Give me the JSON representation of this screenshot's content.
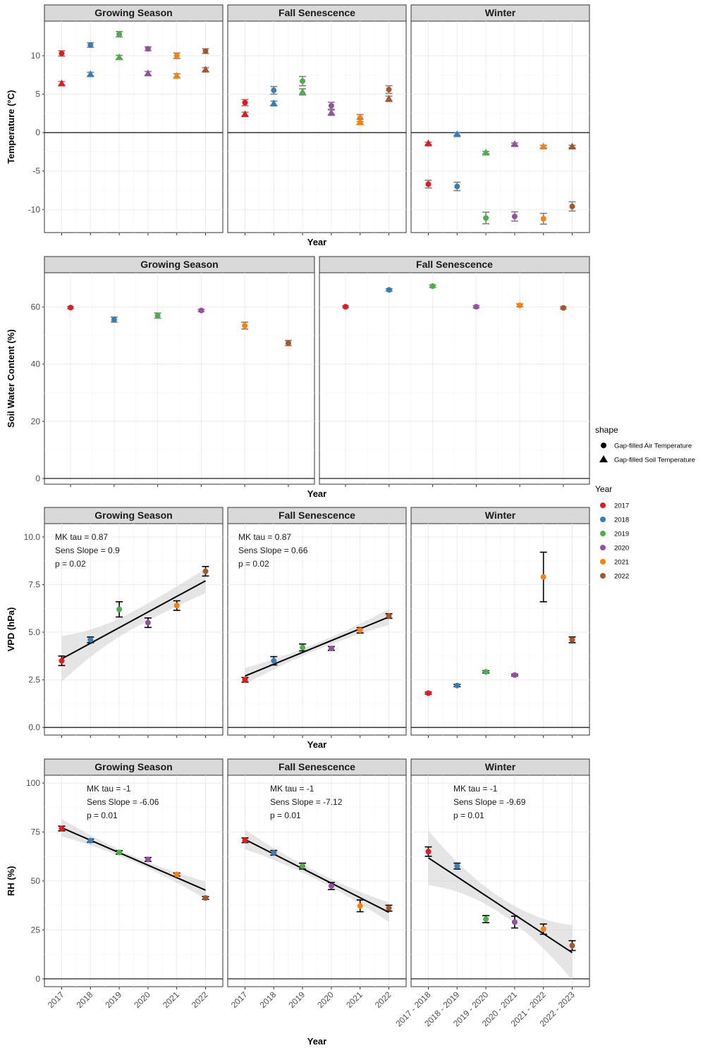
{
  "chart_data": [
    {
      "type": "scatter",
      "ylabel": "Temperature (°C)",
      "xlabel": "Year",
      "ylim": [
        -13,
        14.5
      ],
      "yticks": [
        10,
        5,
        0,
        -5,
        -10
      ],
      "panels": [
        {
          "title": "Growing Season",
          "x": [
            "2017",
            "2018",
            "2019",
            "2020",
            "2021",
            "2022"
          ],
          "series": [
            {
              "name": "Gap-filled Air Temperature",
              "shape": "circle",
              "values": [
                10.3,
                11.4,
                12.8,
                10.9,
                10.0,
                10.6
              ],
              "err": [
                0.35,
                0.3,
                0.35,
                0.25,
                0.35,
                0.3
              ]
            },
            {
              "name": "Gap-filled Soil Temperature",
              "shape": "triangle",
              "values": [
                6.4,
                7.6,
                9.8,
                7.7,
                7.4,
                8.2
              ],
              "err": [
                0.25,
                0.25,
                0.25,
                0.25,
                0.25,
                0.25
              ]
            }
          ]
        },
        {
          "title": "Fall Senescence",
          "x": [
            "2017",
            "2018",
            "2019",
            "2020",
            "2021",
            "2022"
          ],
          "series": [
            {
              "name": "Gap-filled Air Temperature",
              "shape": "circle",
              "values": [
                3.9,
                5.5,
                6.7,
                3.5,
                1.9,
                5.6
              ],
              "err": [
                0.4,
                0.5,
                0.6,
                0.45,
                0.45,
                0.5
              ]
            },
            {
              "name": "Gap-filled Soil Temperature",
              "shape": "triangle",
              "values": [
                2.4,
                3.8,
                5.3,
                2.6,
                1.4,
                4.4
              ],
              "err": [
                0.25,
                0.3,
                0.4,
                0.35,
                0.35,
                0.35
              ]
            }
          ]
        },
        {
          "title": "Winter",
          "x": [
            "2017 - 2018",
            "2018 - 2019",
            "2019 - 2020",
            "2020 - 2021",
            "2021 - 2022",
            "2022 - 2023"
          ],
          "series": [
            {
              "name": "Gap-filled Air Temperature",
              "shape": "circle",
              "values": [
                -6.7,
                -7.0,
                -11.1,
                -10.9,
                -11.2,
                -9.6
              ],
              "err": [
                0.5,
                0.55,
                0.75,
                0.6,
                0.7,
                0.6
              ]
            },
            {
              "name": "Gap-filled Soil Temperature",
              "shape": "triangle",
              "values": [
                -1.4,
                -0.2,
                -2.6,
                -1.5,
                -1.8,
                -1.8
              ],
              "err": [
                0.15,
                0.15,
                0.15,
                0.15,
                0.15,
                0.15
              ]
            }
          ]
        }
      ]
    },
    {
      "type": "scatter",
      "ylabel": "Soil Water Content (%)",
      "xlabel": "Year",
      "ylim": [
        -2,
        72
      ],
      "yticks": [
        60,
        40,
        20,
        0
      ],
      "panels": [
        {
          "title": "Growing Season",
          "x": [
            "2017",
            "2018",
            "2019",
            "2020",
            "2021",
            "2022"
          ],
          "series": [
            {
              "name": "Soil Water Content",
              "shape": "circle",
              "values": [
                59.8,
                55.6,
                57.0,
                58.8,
                53.5,
                47.4
              ],
              "err": [
                0.35,
                0.9,
                0.9,
                0.4,
                1.2,
                0.9
              ]
            }
          ]
        },
        {
          "title": "Fall Senescence",
          "x": [
            "2017",
            "2018",
            "2019",
            "2020",
            "2021",
            "2022"
          ],
          "series": [
            {
              "name": "Soil Water Content",
              "shape": "circle",
              "values": [
                60.1,
                66.0,
                67.3,
                60.1,
                60.6,
                59.7
              ],
              "err": [
                0.35,
                0.4,
                0.45,
                0.4,
                0.5,
                0.4
              ]
            }
          ]
        }
      ]
    },
    {
      "type": "scatter",
      "ylabel": "VPD (hPa)",
      "xlabel": "Year",
      "ylim": [
        -0.4,
        10.7
      ],
      "yticks": [
        0.0,
        2.5,
        5.0,
        7.5,
        10.0
      ],
      "panels": [
        {
          "title": "Growing Season",
          "x": [
            "2017",
            "2018",
            "2019",
            "2020",
            "2021",
            "2022"
          ],
          "series": [
            {
              "name": "VPD",
              "shape": "circle",
              "values": [
                3.5,
                4.6,
                6.2,
                5.5,
                6.4,
                8.2
              ],
              "err": [
                0.25,
                0.15,
                0.4,
                0.25,
                0.25,
                0.25
              ]
            }
          ],
          "trend": {
            "y0": 3.6,
            "y1": 7.7,
            "band0": 1.2,
            "band_mid": 0.45,
            "band1": 0.65
          },
          "annotation": [
            "MK tau = 0.87",
            "Sens Slope = 0.9",
            "p = 0.02"
          ]
        },
        {
          "title": "Fall Senescence",
          "x": [
            "2017",
            "2018",
            "2019",
            "2020",
            "2021",
            "2022"
          ],
          "series": [
            {
              "name": "VPD",
              "shape": "circle",
              "values": [
                2.5,
                3.5,
                4.2,
                4.15,
                5.1,
                5.85
              ],
              "err": [
                0.12,
                0.22,
                0.18,
                0.1,
                0.14,
                0.12
              ]
            }
          ],
          "trend": {
            "y0": 2.7,
            "y1": 5.8,
            "band0": 0.42,
            "band_mid": 0.18,
            "band1": 0.42
          },
          "annotation": [
            "MK tau = 0.87",
            "Sens Slope = 0.66",
            "p = 0.02"
          ]
        },
        {
          "title": "Winter",
          "x": [
            "2017 - 2018",
            "2018 - 2019",
            "2019 - 2020",
            "2020 - 2021",
            "2021 - 2022",
            "2022 - 2023"
          ],
          "series": [
            {
              "name": "VPD",
              "shape": "circle",
              "values": [
                1.8,
                2.2,
                2.92,
                2.75,
                7.9,
                4.6
              ],
              "err": [
                0.05,
                0.06,
                0.06,
                0.05,
                1.3,
                0.15
              ]
            }
          ]
        }
      ]
    },
    {
      "type": "scatter",
      "ylabel": "RH (%)",
      "xlabel": "Year",
      "ylim": [
        -4,
        104
      ],
      "yticks": [
        100,
        75,
        50,
        25,
        0
      ],
      "panels": [
        {
          "title": "Growing Season",
          "x": [
            "2017",
            "2018",
            "2019",
            "2020",
            "2021",
            "2022"
          ],
          "series": [
            {
              "name": "RH",
              "shape": "circle",
              "values": [
                76.8,
                70.6,
                64.6,
                61.0,
                53.3,
                41.3
              ],
              "err": [
                1.2,
                0.8,
                0.9,
                1.0,
                0.8,
                0.7
              ]
            }
          ],
          "trend": {
            "y0": 77.2,
            "y1": 45.3,
            "band0": 4.5,
            "band_mid": 1.5,
            "band1": 4.5
          },
          "annotation": [
            "MK tau = -1",
            "Sens Slope = -6.06",
            "p = 0.01"
          ]
        },
        {
          "title": "Fall Senescence",
          "x": [
            "2017",
            "2018",
            "2019",
            "2020",
            "2021",
            "2022"
          ],
          "series": [
            {
              "name": "RH",
              "shape": "circle",
              "values": [
                70.8,
                64.4,
                57.6,
                47.4,
                37.3,
                36.1
              ],
              "err": [
                1.2,
                1.2,
                1.5,
                1.8,
                3.0,
                1.5
              ]
            }
          ],
          "trend": {
            "y0": 71.2,
            "y1": 34.0,
            "band0": 5.0,
            "band_mid": 2.0,
            "band1": 5.0
          },
          "annotation": [
            "MK tau = -1",
            "Sens Slope = -7.12",
            "p = 0.01"
          ]
        },
        {
          "title": "Winter",
          "x": [
            "2017 - 2018",
            "2018 - 2019",
            "2019 - 2020",
            "2020 - 2021",
            "2021 - 2022",
            "2022 - 2023"
          ],
          "series": [
            {
              "name": "RH",
              "shape": "circle",
              "values": [
                65.0,
                57.6,
                30.5,
                29.0,
                25.4,
                17.0
              ],
              "err": [
                2.4,
                1.5,
                1.8,
                3.0,
                2.6,
                2.5
              ]
            }
          ],
          "trend": {
            "y0": 61.8,
            "y1": 13.4,
            "band0": 14.0,
            "band_mid": 4.0,
            "band1": 14.0
          },
          "annotation": [
            "MK tau = -1",
            "Sens Slope = -9.69",
            "p = 0.01"
          ]
        }
      ]
    }
  ],
  "legend": {
    "shape_title": "shape",
    "shape_items": [
      {
        "label": "Gap-filled Air Temperature",
        "shape": "circle"
      },
      {
        "label": "Gap-filled Soil Temperature",
        "shape": "triangle"
      }
    ],
    "year_title": "Year",
    "year_items": [
      {
        "label": "2017",
        "color": "#e41a1c"
      },
      {
        "label": "2018",
        "color": "#377eb8"
      },
      {
        "label": "2019",
        "color": "#4daf4a"
      },
      {
        "label": "2020",
        "color": "#984ea3"
      },
      {
        "label": "2021",
        "color": "#ff7f00"
      },
      {
        "label": "2022",
        "color": "#a65628"
      }
    ]
  },
  "colors": {
    "strip_bg": "#d9d9d9",
    "grid": "#ebebeb",
    "band": "#d3d3d3",
    "errorbar_temperature": "#808080",
    "errorbar_other": "#000000"
  }
}
